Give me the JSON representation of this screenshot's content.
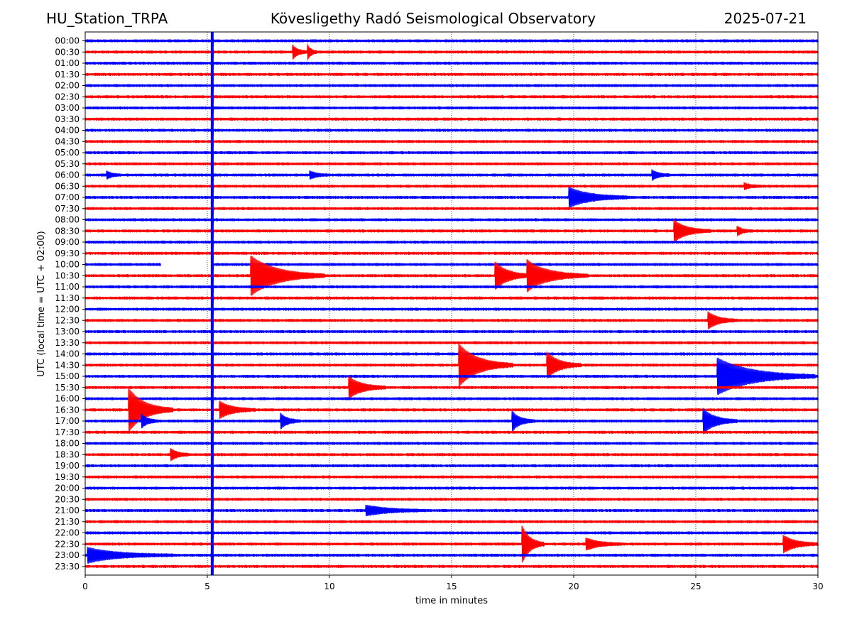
{
  "header": {
    "station": "HU_Station_TRPA",
    "title": "Kövesligethy Radó Seismological Observatory",
    "date": "2025-07-21"
  },
  "chart_data": {
    "type": "line",
    "subtype": "helicorder",
    "xlabel": "time in minutes",
    "ylabel": "UTC (local time = UTC + 02:00)",
    "xlim": [
      0,
      30
    ],
    "x_ticks": [
      "0",
      "5",
      "10",
      "15",
      "20",
      "25",
      "30"
    ],
    "grid": "vertical dotted lines at each x tick",
    "colors": {
      "even_rows": "#0000ff",
      "odd_rows": "#ff0000",
      "frame": "#000000"
    },
    "rows": [
      "00:00",
      "00:30",
      "01:00",
      "01:30",
      "02:00",
      "02:30",
      "03:00",
      "03:30",
      "04:00",
      "04:30",
      "05:00",
      "05:30",
      "06:00",
      "06:30",
      "07:00",
      "07:30",
      "08:00",
      "08:30",
      "09:00",
      "09:30",
      "10:00",
      "10:30",
      "11:00",
      "11:30",
      "12:00",
      "12:30",
      "13:00",
      "13:30",
      "14:00",
      "14:30",
      "15:00",
      "15:30",
      "16:00",
      "16:30",
      "17:00",
      "17:30",
      "18:00",
      "18:30",
      "19:00",
      "19:30",
      "20:00",
      "20:30",
      "21:00",
      "21:30",
      "22:00",
      "22:30",
      "23:00",
      "23:30"
    ],
    "persistent_signal_minute": 5.2,
    "gap": {
      "row": "10:00",
      "from_minute": 3.1,
      "to_minute": 5.2
    },
    "events": [
      {
        "row": "00:30",
        "minute": 8.5,
        "amplitude": 0.8,
        "duration": 0.6
      },
      {
        "row": "00:30",
        "minute": 9.1,
        "amplitude": 0.9,
        "duration": 0.4
      },
      {
        "row": "06:00",
        "minute": 0.9,
        "amplitude": 0.4,
        "duration": 0.6
      },
      {
        "row": "06:00",
        "minute": 9.2,
        "amplitude": 0.4,
        "duration": 0.8
      },
      {
        "row": "06:00",
        "minute": 23.2,
        "amplitude": 0.6,
        "duration": 0.7
      },
      {
        "row": "06:30",
        "minute": 27.0,
        "amplitude": 0.35,
        "duration": 0.6
      },
      {
        "row": "07:00",
        "minute": 19.8,
        "amplitude": 1.2,
        "duration": 2.5
      },
      {
        "row": "08:30",
        "minute": 24.1,
        "amplitude": 1.3,
        "duration": 1.5
      },
      {
        "row": "08:30",
        "minute": 26.7,
        "amplitude": 0.5,
        "duration": 0.6
      },
      {
        "row": "10:30",
        "minute": 6.8,
        "amplitude": 2.4,
        "duration": 3.0
      },
      {
        "row": "10:30",
        "minute": 16.8,
        "amplitude": 1.6,
        "duration": 1.5
      },
      {
        "row": "10:30",
        "minute": 18.1,
        "amplitude": 1.8,
        "duration": 2.5
      },
      {
        "row": "12:30",
        "minute": 25.5,
        "amplitude": 1.0,
        "duration": 1.2
      },
      {
        "row": "14:30",
        "minute": 15.3,
        "amplitude": 2.6,
        "duration": 2.2
      },
      {
        "row": "14:30",
        "minute": 18.9,
        "amplitude": 1.6,
        "duration": 1.4
      },
      {
        "row": "15:00",
        "minute": 25.9,
        "amplitude": 2.2,
        "duration": 4.0
      },
      {
        "row": "15:30",
        "minute": 10.8,
        "amplitude": 1.3,
        "duration": 1.5
      },
      {
        "row": "16:30",
        "minute": 1.8,
        "amplitude": 2.6,
        "duration": 1.8
      },
      {
        "row": "16:30",
        "minute": 5.5,
        "amplitude": 1.0,
        "duration": 1.5
      },
      {
        "row": "17:00",
        "minute": 2.3,
        "amplitude": 0.8,
        "duration": 0.7
      },
      {
        "row": "17:00",
        "minute": 8.0,
        "amplitude": 0.9,
        "duration": 0.8
      },
      {
        "row": "17:00",
        "minute": 17.5,
        "amplitude": 1.1,
        "duration": 0.9
      },
      {
        "row": "17:00",
        "minute": 25.3,
        "amplitude": 1.5,
        "duration": 1.4
      },
      {
        "row": "18:30",
        "minute": 3.5,
        "amplitude": 0.7,
        "duration": 0.8
      },
      {
        "row": "21:00",
        "minute": 11.5,
        "amplitude": 0.6,
        "duration": 2.5
      },
      {
        "row": "22:30",
        "minute": 17.9,
        "amplitude": 2.2,
        "duration": 0.9
      },
      {
        "row": "22:30",
        "minute": 20.5,
        "amplitude": 0.7,
        "duration": 1.5
      },
      {
        "row": "22:30",
        "minute": 28.6,
        "amplitude": 1.0,
        "duration": 1.4
      },
      {
        "row": "23:00",
        "minute": 0.1,
        "amplitude": 0.9,
        "duration": 3.5
      }
    ]
  }
}
